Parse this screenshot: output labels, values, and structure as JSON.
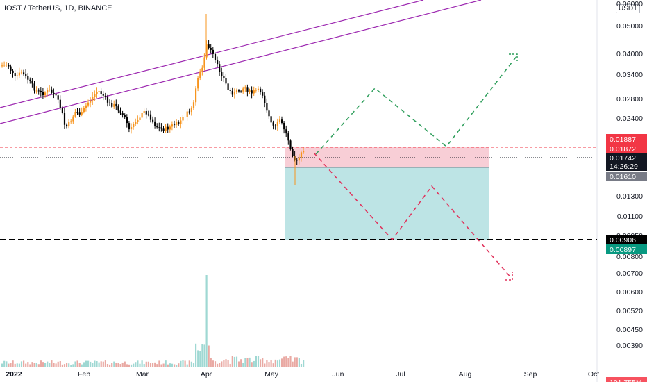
{
  "header": {
    "symbol": "IOST / TetherUS, 1D, BINANCE",
    "unit_button": "USDT"
  },
  "colors": {
    "up": "#f7941d",
    "down": "#000000",
    "channel": "#9c27b0",
    "stop_zone": "#f7c5cf",
    "target_zone": "#b2dfe1",
    "bull_path": "#2e9e5b",
    "bear_path": "#e0305a",
    "vol_up": "#e9a9a3",
    "vol_down": "#9fd8d3"
  },
  "price_axis": {
    "ticks": [
      "0.06000",
      "0.05000",
      "0.04000",
      "0.03400",
      "0.02800",
      "0.02400",
      "0.02100",
      "0.01300",
      "0.01100",
      "0.00950",
      "0.00800",
      "0.00700",
      "0.00600",
      "0.00520",
      "0.00450",
      "0.00390"
    ]
  },
  "time_axis": {
    "labels": [
      "2022",
      "Feb",
      "Mar",
      "Apr",
      "May",
      "Jun",
      "Jul",
      "Aug",
      "Sep",
      "Oct"
    ]
  },
  "price_tags": [
    {
      "name": "stop-high-tag",
      "text": "0.01887",
      "bg": "#f23645",
      "fg": "#ffffff"
    },
    {
      "name": "stop-low-tag",
      "text": "0.01872",
      "bg": "#f23645",
      "fg": "#ffffff"
    },
    {
      "name": "last-price-tag",
      "text": "0.01742",
      "sub": "14:26:29",
      "bg": "#131722",
      "fg": "#ffffff"
    },
    {
      "name": "entry-tag",
      "text": "0.01610",
      "bg": "#787b86",
      "fg": "#ffffff"
    },
    {
      "name": "support-tag",
      "text": "0.00906",
      "bg": "#000000",
      "fg": "#ffffff"
    },
    {
      "name": "target-tag",
      "text": "0.00897",
      "bg": "#089981",
      "fg": "#ffffff"
    },
    {
      "name": "volume-tag",
      "text": "191.755M",
      "bg": "#f7525f",
      "fg": "#ffffff"
    }
  ]
}
